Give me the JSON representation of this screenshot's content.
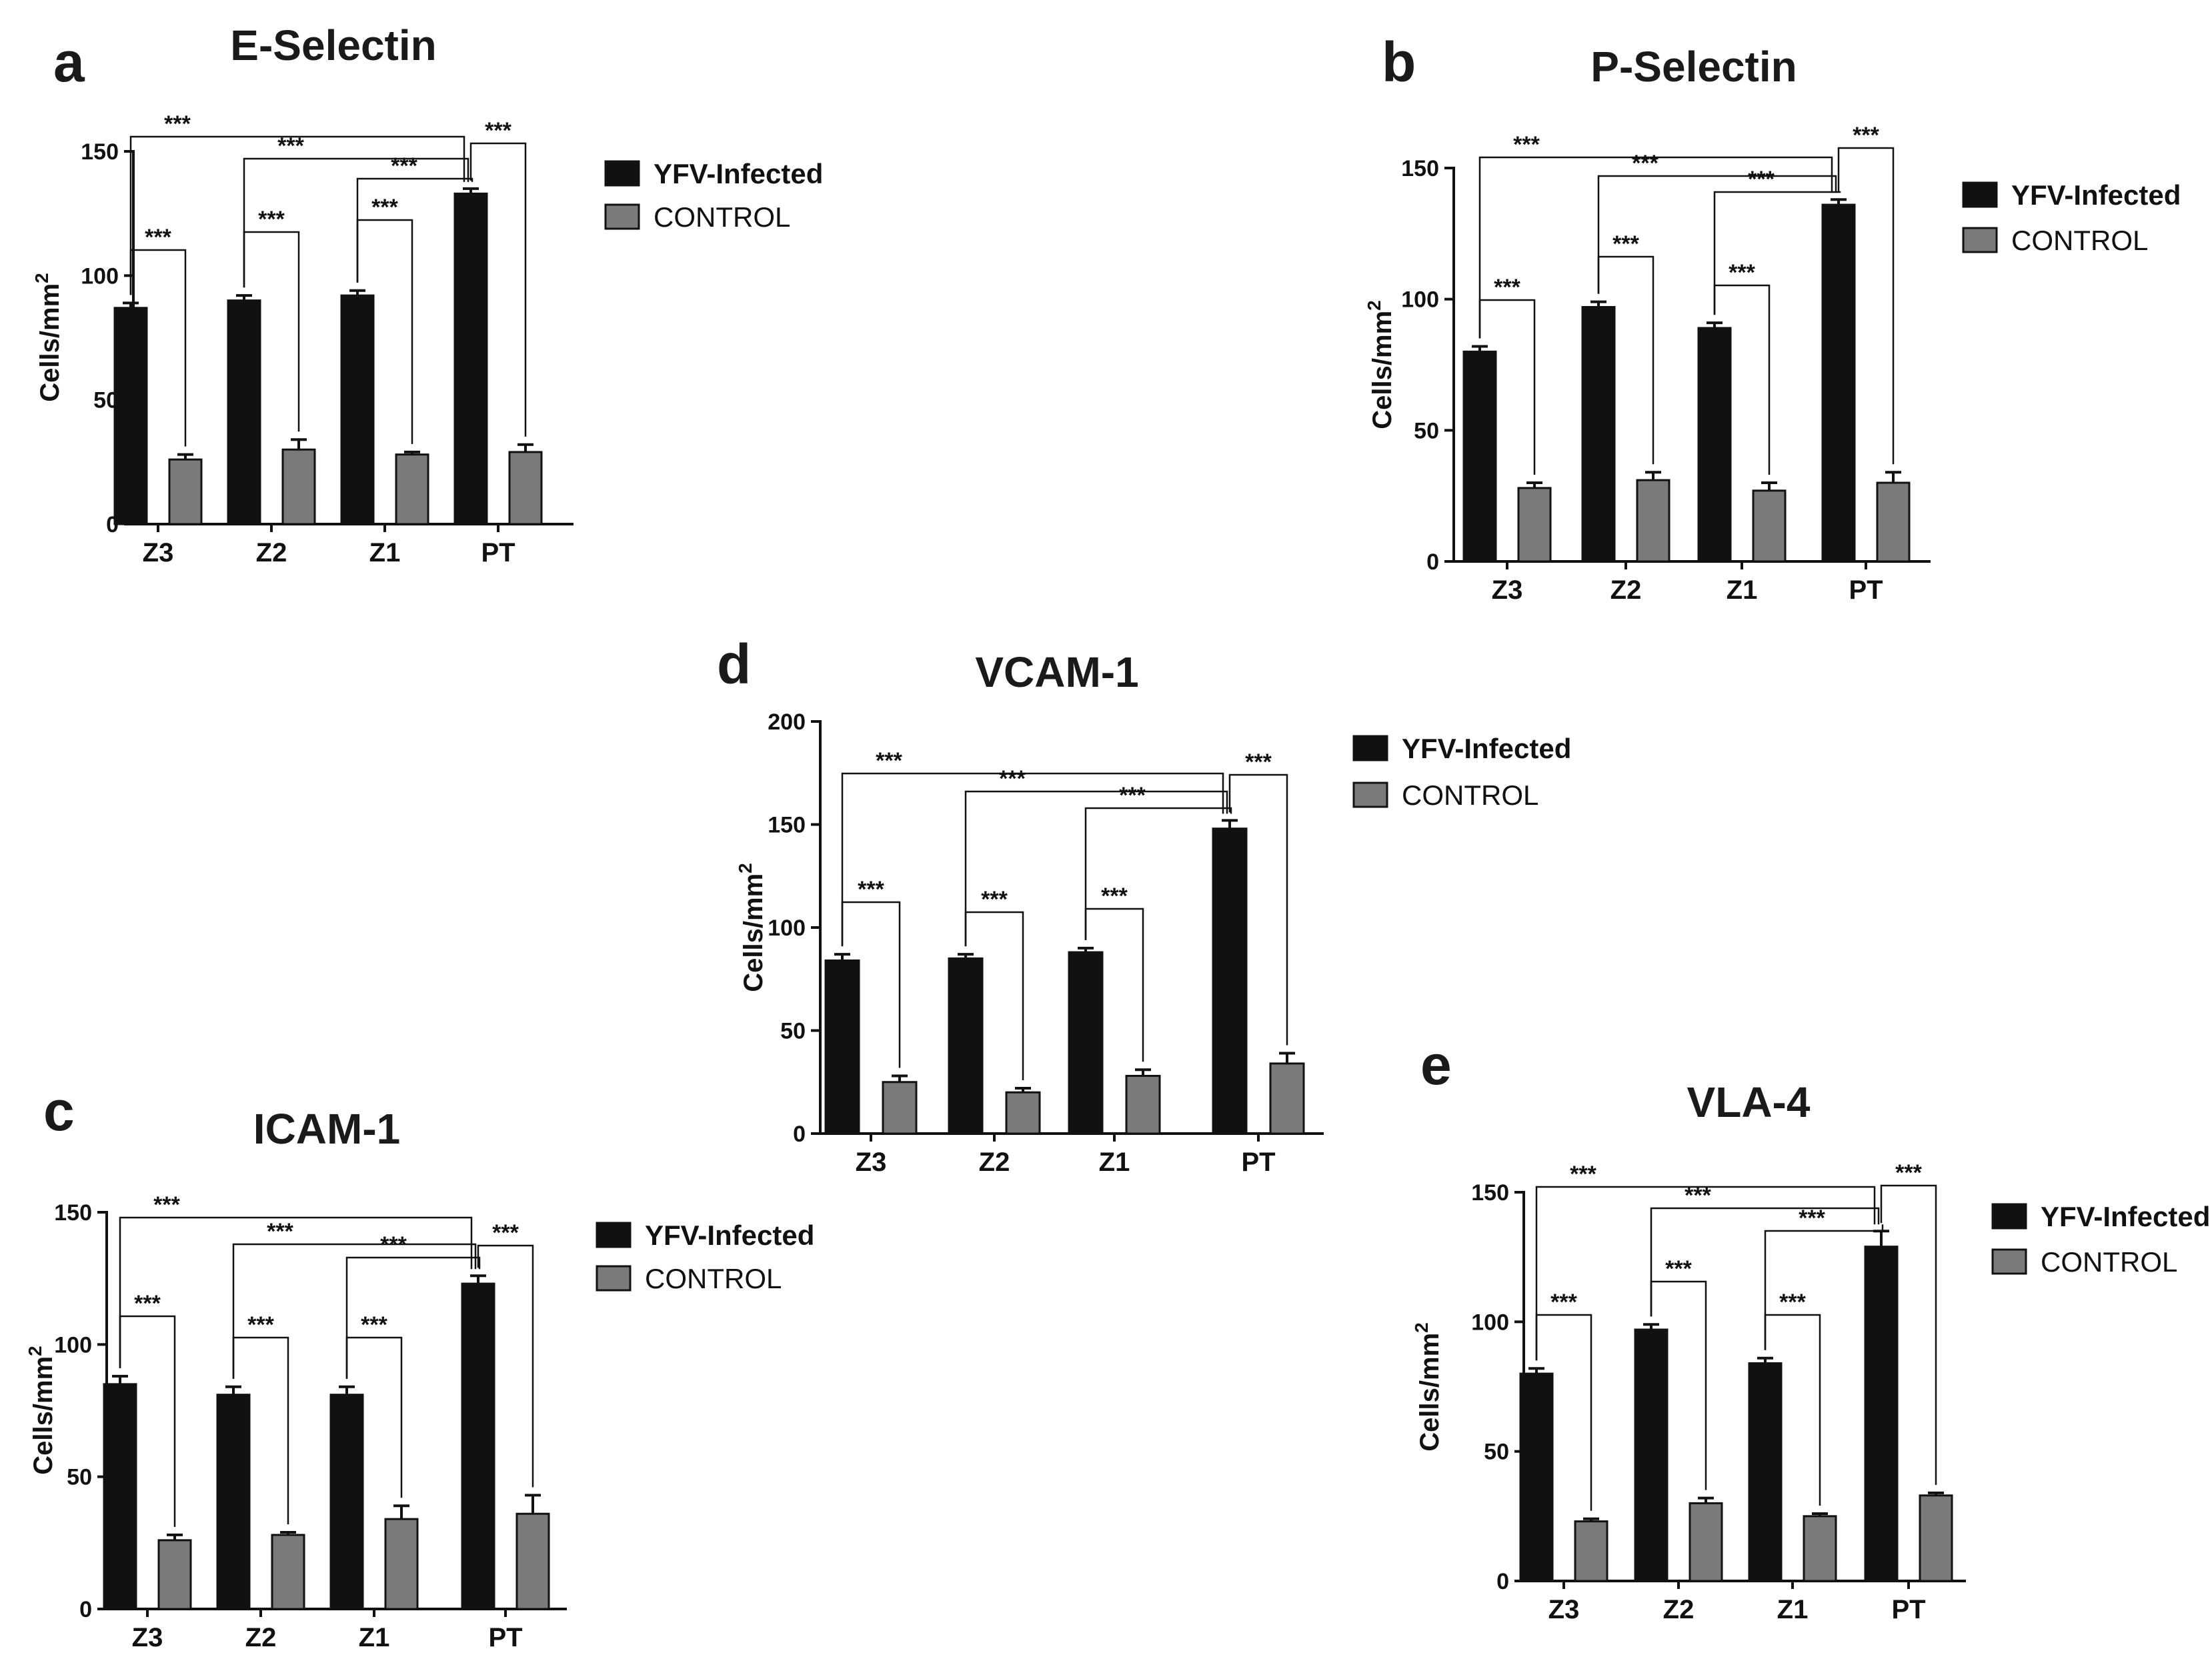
{
  "figure": {
    "legend": {
      "series": [
        "YFV-Infected",
        "CONTROL"
      ]
    },
    "colors": {
      "infected": "#111111",
      "control": "#7a7a7a",
      "axis": "#111111"
    }
  },
  "chart_data": [
    {
      "panel": "a",
      "title": "E-Selectin",
      "type": "bar",
      "ylabel": "Cells/mm",
      "ylabel_superscript": "2",
      "ylim": [
        0,
        150
      ],
      "yticks": [
        0,
        50,
        100,
        150
      ],
      "categories": [
        "Z3",
        "Z2",
        "Z1",
        "PT"
      ],
      "legend": [
        "YFV-Infected",
        "CONTROL"
      ],
      "series": [
        {
          "name": "YFV-Infected",
          "values": [
            87,
            90,
            92,
            133
          ],
          "errors": [
            2,
            2,
            2,
            2
          ]
        },
        {
          "name": "CONTROL",
          "values": [
            26,
            30,
            28,
            29
          ],
          "errors": [
            2,
            4,
            1,
            3
          ]
        }
      ],
      "significance": [
        {
          "label": "***",
          "type": "within",
          "category": 0
        },
        {
          "label": "***",
          "type": "within",
          "category": 1
        },
        {
          "label": "***",
          "type": "within",
          "category": 2
        },
        {
          "label": "***",
          "type": "within",
          "category": 3
        },
        {
          "label": "***",
          "type": "across",
          "from": 0,
          "to": 3
        },
        {
          "label": "***",
          "type": "across",
          "from": 1,
          "to": 3
        },
        {
          "label": "***",
          "type": "across",
          "from": 2,
          "to": 3
        }
      ]
    },
    {
      "panel": "b",
      "title": "P-Selectin",
      "type": "bar",
      "ylabel": "Cells/mm",
      "ylabel_superscript": "2",
      "ylim": [
        0,
        150
      ],
      "yticks": [
        0,
        50,
        100,
        150
      ],
      "categories": [
        "Z3",
        "Z2",
        "Z1",
        "PT"
      ],
      "legend": [
        "YFV-Infected",
        "CONTROL"
      ],
      "series": [
        {
          "name": "YFV-Infected",
          "values": [
            80,
            97,
            89,
            136
          ],
          "errors": [
            2,
            2,
            2,
            2
          ]
        },
        {
          "name": "CONTROL",
          "values": [
            28,
            31,
            27,
            30
          ],
          "errors": [
            2,
            3,
            3,
            4
          ]
        }
      ],
      "significance": [
        {
          "label": "***",
          "type": "within",
          "category": 0
        },
        {
          "label": "***",
          "type": "within",
          "category": 1
        },
        {
          "label": "***",
          "type": "within",
          "category": 2
        },
        {
          "label": "***",
          "type": "within",
          "category": 3
        },
        {
          "label": "***",
          "type": "across",
          "from": 0,
          "to": 3
        },
        {
          "label": "***",
          "type": "across",
          "from": 1,
          "to": 3
        },
        {
          "label": "***",
          "type": "across",
          "from": 2,
          "to": 3
        }
      ]
    },
    {
      "panel": "c",
      "title": "ICAM-1",
      "type": "bar",
      "ylabel": "Cells/mm",
      "ylabel_superscript": "2",
      "ylim": [
        0,
        150
      ],
      "yticks": [
        0,
        50,
        100,
        150
      ],
      "categories": [
        "Z3",
        "Z2",
        "Z1",
        "PT"
      ],
      "legend": [
        "YFV-Infected",
        "CONTROL"
      ],
      "series": [
        {
          "name": "YFV-Infected",
          "values": [
            85,
            81,
            81,
            123
          ],
          "errors": [
            3,
            3,
            3,
            3
          ]
        },
        {
          "name": "CONTROL",
          "values": [
            26,
            28,
            34,
            36
          ],
          "errors": [
            2,
            1,
            5,
            7
          ]
        }
      ],
      "significance": [
        {
          "label": "***",
          "type": "within",
          "category": 0
        },
        {
          "label": "***",
          "type": "within",
          "category": 1
        },
        {
          "label": "***",
          "type": "within",
          "category": 2
        },
        {
          "label": "***",
          "type": "within",
          "category": 3
        },
        {
          "label": "***",
          "type": "across",
          "from": 0,
          "to": 3
        },
        {
          "label": "***",
          "type": "across",
          "from": 1,
          "to": 3
        },
        {
          "label": "***",
          "type": "across",
          "from": 2,
          "to": 3
        }
      ]
    },
    {
      "panel": "d",
      "title": "VCAM-1",
      "type": "bar",
      "ylabel": "Cells/mm",
      "ylabel_superscript": "2",
      "ylim": [
        0,
        200
      ],
      "yticks": [
        0,
        50,
        100,
        150,
        200
      ],
      "categories": [
        "Z3",
        "Z2",
        "Z1",
        "PT"
      ],
      "legend": [
        "YFV-Infected",
        "CONTROL"
      ],
      "series": [
        {
          "name": "YFV-Infected",
          "values": [
            84,
            85,
            88,
            148
          ],
          "errors": [
            3,
            2,
            2,
            4
          ]
        },
        {
          "name": "CONTROL",
          "values": [
            25,
            20,
            28,
            34
          ],
          "errors": [
            3,
            2,
            3,
            5
          ]
        }
      ],
      "significance": [
        {
          "label": "***",
          "type": "within",
          "category": 0
        },
        {
          "label": "***",
          "type": "within",
          "category": 1
        },
        {
          "label": "***",
          "type": "within",
          "category": 2
        },
        {
          "label": "***",
          "type": "within",
          "category": 3
        },
        {
          "label": "***",
          "type": "across",
          "from": 0,
          "to": 3
        },
        {
          "label": "***",
          "type": "across",
          "from": 1,
          "to": 3
        },
        {
          "label": "***",
          "type": "across",
          "from": 2,
          "to": 3
        }
      ]
    },
    {
      "panel": "e",
      "title": "VLA-4",
      "type": "bar",
      "ylabel": "Cells/mm",
      "ylabel_superscript": "2",
      "ylim": [
        0,
        150
      ],
      "yticks": [
        0,
        50,
        100,
        150
      ],
      "categories": [
        "Z3",
        "Z2",
        "Z1",
        "PT"
      ],
      "legend": [
        "YFV-Infected",
        "CONTROL"
      ],
      "series": [
        {
          "name": "YFV-Infected",
          "values": [
            80,
            97,
            84,
            129
          ],
          "errors": [
            2,
            2,
            2,
            6
          ]
        },
        {
          "name": "CONTROL",
          "values": [
            23,
            30,
            25,
            33
          ],
          "errors": [
            1,
            2,
            1,
            1
          ]
        }
      ],
      "significance": [
        {
          "label": "***",
          "type": "within",
          "category": 0
        },
        {
          "label": "***",
          "type": "within",
          "category": 1
        },
        {
          "label": "***",
          "type": "within",
          "category": 2
        },
        {
          "label": "***",
          "type": "within",
          "category": 3
        },
        {
          "label": "***",
          "type": "across",
          "from": 0,
          "to": 3
        },
        {
          "label": "***",
          "type": "across",
          "from": 1,
          "to": 3
        },
        {
          "label": "***",
          "type": "across",
          "from": 2,
          "to": 3
        }
      ]
    }
  ]
}
